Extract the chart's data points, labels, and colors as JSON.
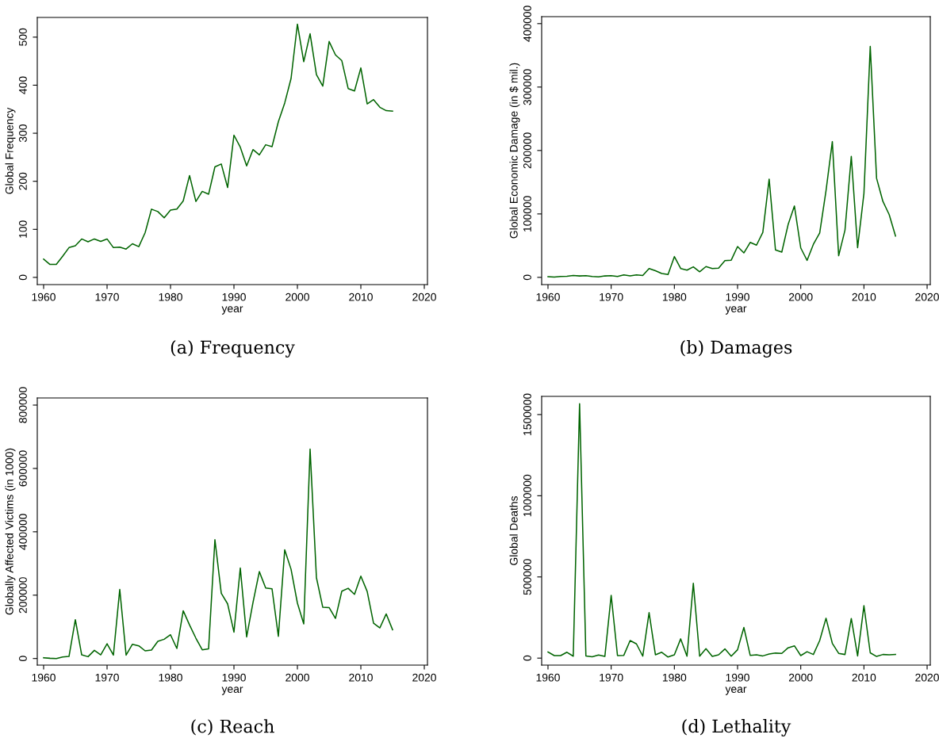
{
  "chart_data": [
    {
      "type": "line",
      "title": "(a) Frequency",
      "xlabel": "year",
      "ylabel": "Global Frequency",
      "grid": false,
      "legend": false,
      "x": [
        1960,
        1961,
        1962,
        1963,
        1964,
        1965,
        1966,
        1967,
        1968,
        1969,
        1970,
        1971,
        1972,
        1973,
        1974,
        1975,
        1976,
        1977,
        1978,
        1979,
        1980,
        1981,
        1982,
        1983,
        1984,
        1985,
        1986,
        1987,
        1988,
        1989,
        1990,
        1991,
        1992,
        1993,
        1994,
        1995,
        1996,
        1997,
        1998,
        1999,
        2000,
        2001,
        2002,
        2003,
        2004,
        2005,
        2006,
        2007,
        2008,
        2009,
        2010,
        2011,
        2012,
        2013,
        2014,
        2015
      ],
      "series": [
        {
          "color": "#006400",
          "values": [
            38,
            27,
            27,
            44,
            62,
            66,
            80,
            74,
            80,
            75,
            80,
            62,
            63,
            59,
            70,
            64,
            93,
            142,
            137,
            124,
            140,
            142,
            159,
            212,
            158,
            179,
            173,
            230,
            236,
            187,
            296,
            271,
            232,
            266,
            255,
            276,
            272,
            324,
            363,
            414,
            527,
            449,
            507,
            422,
            398,
            491,
            463,
            451,
            393,
            388,
            436,
            361,
            370,
            354,
            347,
            346
          ]
        }
      ],
      "xlim": [
        1959,
        2020.5
      ],
      "xticks": [
        1960,
        1970,
        1980,
        1990,
        2000,
        2010,
        2020
      ],
      "ylim": [
        -15,
        541
      ],
      "yticks": [
        0,
        100,
        200,
        300,
        400,
        500
      ]
    },
    {
      "type": "line",
      "title": "(b) Damages",
      "xlabel": "year",
      "ylabel": "Global Economic Damage (in $ mil.)",
      "grid": false,
      "legend": false,
      "x": [
        1960,
        1961,
        1962,
        1963,
        1964,
        1965,
        1966,
        1967,
        1968,
        1969,
        1970,
        1971,
        1972,
        1973,
        1974,
        1975,
        1976,
        1977,
        1978,
        1979,
        1980,
        1981,
        1982,
        1983,
        1984,
        1985,
        1986,
        1987,
        1988,
        1989,
        1990,
        1991,
        1992,
        1993,
        1994,
        1995,
        1996,
        1997,
        1998,
        1999,
        2000,
        2001,
        2002,
        2003,
        2004,
        2005,
        2006,
        2007,
        2008,
        2009,
        2010,
        2011,
        2012,
        2013,
        2014,
        2015
      ],
      "series": [
        {
          "color": "#006400",
          "values": [
            1000,
            500,
            1300,
            1800,
            3000,
            2200,
            2600,
            1300,
            900,
            2200,
            2600,
            1300,
            3900,
            2200,
            3900,
            3000,
            14000,
            10500,
            6100,
            4400,
            32800,
            14000,
            11400,
            16600,
            8800,
            17000,
            14000,
            14400,
            26300,
            27100,
            48600,
            38500,
            55100,
            50800,
            70900,
            154900,
            43300,
            39800,
            83200,
            112500,
            46400,
            26700,
            52100,
            70000,
            136500,
            214000,
            34100,
            74400,
            190800,
            46800,
            132200,
            364100,
            156200,
            119900,
            98900,
            65200
          ]
        }
      ],
      "xlim": [
        1959,
        2020.5
      ],
      "xticks": [
        1960,
        1970,
        1980,
        1990,
        2000,
        2010,
        2020
      ],
      "ylim": [
        -11400,
        411000
      ],
      "yticks": [
        0,
        100000,
        200000,
        300000,
        400000
      ]
    },
    {
      "type": "line",
      "title": "(c) Reach",
      "xlabel": "year",
      "ylabel": "Globally Affected Victims (in 1000)",
      "grid": false,
      "legend": false,
      "x": [
        1960,
        1961,
        1962,
        1963,
        1964,
        1965,
        1966,
        1967,
        1968,
        1969,
        1970,
        1971,
        1972,
        1973,
        1974,
        1975,
        1976,
        1977,
        1978,
        1979,
        1980,
        1981,
        1982,
        1983,
        1984,
        1985,
        1986,
        1987,
        1988,
        1989,
        1990,
        1991,
        1992,
        1993,
        1994,
        1995,
        1996,
        1997,
        1998,
        1999,
        2000,
        2001,
        2002,
        2003,
        2004,
        2005,
        2006,
        2007,
        2008,
        2009,
        2010,
        2011,
        2012,
        2013,
        2014,
        2015
      ],
      "series": [
        {
          "color": "#006400",
          "values": [
            2500,
            800,
            0,
            5000,
            6700,
            122500,
            11700,
            5800,
            25800,
            11700,
            46700,
            10800,
            218300,
            10800,
            45000,
            40000,
            24200,
            26700,
            54200,
            60800,
            75000,
            31700,
            150800,
            105800,
            64200,
            27500,
            30800,
            375000,
            205800,
            172500,
            83300,
            285800,
            68300,
            176700,
            274200,
            222500,
            220000,
            70000,
            343300,
            281700,
            175000,
            109200,
            660800,
            255000,
            161700,
            160800,
            126700,
            212500,
            221700,
            202500,
            260000,
            211700,
            111700,
            96700,
            140800,
            90800
          ]
        }
      ],
      "xlim": [
        1959,
        2020.5
      ],
      "xticks": [
        1960,
        1970,
        1980,
        1990,
        2000,
        2010,
        2020
      ],
      "ylim": [
        -20800,
        822500
      ],
      "yticks": [
        0,
        200000,
        400000,
        600000,
        800000
      ]
    },
    {
      "type": "line",
      "title": "(d) Lethality",
      "xlabel": "year",
      "ylabel": "Global Deaths",
      "grid": false,
      "legend": false,
      "x": [
        1960,
        1961,
        1962,
        1963,
        1964,
        1965,
        1966,
        1967,
        1968,
        1969,
        1970,
        1971,
        1972,
        1973,
        1974,
        1975,
        1976,
        1977,
        1978,
        1979,
        1980,
        1981,
        1982,
        1983,
        1984,
        1985,
        1986,
        1987,
        1988,
        1989,
        1990,
        1991,
        1992,
        1993,
        1994,
        1995,
        1996,
        1997,
        1998,
        1999,
        2000,
        2001,
        2002,
        2003,
        2004,
        2005,
        2006,
        2007,
        2008,
        2009,
        2010,
        2011,
        2012,
        2013,
        2014,
        2015
      ],
      "series": [
        {
          "color": "#006400",
          "values": [
            37800,
            15500,
            15500,
            36100,
            12000,
            1567000,
            13700,
            8600,
            18900,
            10300,
            386600,
            15500,
            17200,
            108200,
            87600,
            12000,
            280100,
            20600,
            36100,
            6900,
            20600,
            118600,
            12000,
            460500,
            12000,
            58400,
            10300,
            20600,
            56700,
            12000,
            51500,
            189000,
            17200,
            20600,
            13700,
            25800,
            30900,
            29200,
            63600,
            75600,
            15500,
            39500,
            22300,
            108200,
            245700,
            91100,
            29200,
            22300,
            244000,
            13700,
            323000,
            32600,
            10300,
            22300,
            20600,
            22300
          ]
        }
      ],
      "xlim": [
        1959,
        2020.5
      ],
      "xticks": [
        1960,
        1970,
        1980,
        1990,
        2000,
        2010,
        2020
      ],
      "ylim": [
        -43000,
        1612000
      ],
      "yticks": [
        0,
        500000,
        1000000,
        1500000
      ]
    }
  ]
}
